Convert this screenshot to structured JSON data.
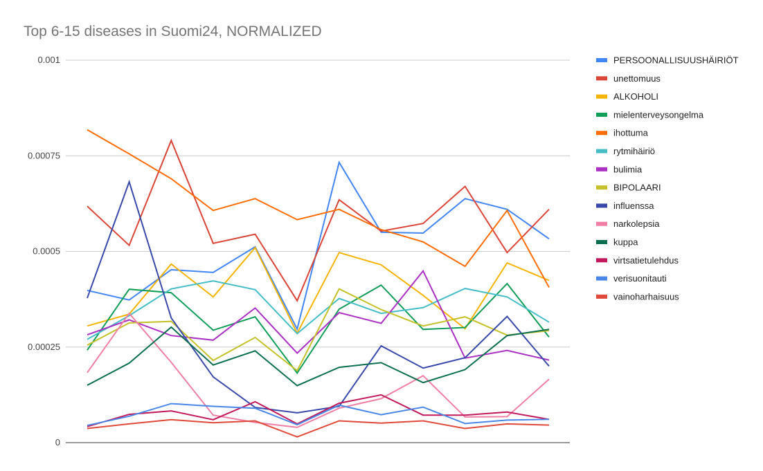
{
  "chart_data": {
    "type": "line",
    "title": "Top 6-15 diseases in Suomi24, NORMALIZED",
    "xlabel": "",
    "ylabel": "",
    "ylim": [
      0,
      0.001
    ],
    "yticks": [
      {
        "value": 0,
        "label": "0"
      },
      {
        "value": 0.00025,
        "label": "0.00025"
      },
      {
        "value": 0.0005,
        "label": "0.0005"
      },
      {
        "value": 0.00075,
        "label": "0.00075"
      },
      {
        "value": 0.001,
        "label": "0.001"
      }
    ],
    "grid": true,
    "legend_position": "right",
    "x": [
      1,
      2,
      3,
      4,
      5,
      6,
      7,
      8,
      9,
      10,
      11,
      12
    ],
    "series": [
      {
        "name": "PERSOONALLISUUSHÄIRIÖT",
        "color": "#4285f4",
        "values": [
          0.000398,
          0.000373,
          0.000452,
          0.000445,
          0.000512,
          0.000297,
          0.000733,
          0.00055,
          0.000548,
          0.000638,
          0.00061,
          0.000533
        ]
      },
      {
        "name": "unettomuus",
        "color": "#db4437",
        "values": [
          0.000618,
          0.000516,
          0.00079,
          0.000521,
          0.000545,
          0.000371,
          0.000635,
          0.000553,
          0.000573,
          0.00067,
          0.000497,
          0.00061
        ]
      },
      {
        "name": "ALKOHOLI",
        "color": "#f4b400",
        "values": [
          0.000305,
          0.000336,
          0.000467,
          0.000381,
          0.00051,
          0.000286,
          0.000497,
          0.000465,
          0.000385,
          0.000298,
          0.00047,
          0.000424
        ]
      },
      {
        "name": "mielenterveysongelma",
        "color": "#0f9d58",
        "values": [
          0.000242,
          0.000401,
          0.000392,
          0.000294,
          0.000329,
          0.000182,
          0.000349,
          0.000412,
          0.000296,
          0.000301,
          0.000416,
          0.000276
        ]
      },
      {
        "name": "ihottuma",
        "color": "#ff6d00",
        "values": [
          0.000818,
          0.000755,
          0.00069,
          0.000607,
          0.000638,
          0.000583,
          0.00061,
          0.000557,
          0.000525,
          0.000461,
          0.000607,
          0.000406
        ]
      },
      {
        "name": "rytmihäiriö",
        "color": "#46bdc6",
        "values": [
          0.00027,
          0.000332,
          0.000402,
          0.000423,
          0.0004,
          0.000285,
          0.000377,
          0.000338,
          0.000353,
          0.000403,
          0.000381,
          0.000315
        ]
      },
      {
        "name": "bulimia",
        "color": "#ab30c4",
        "values": [
          0.000282,
          0.000321,
          0.00028,
          0.000268,
          0.000352,
          0.000234,
          0.00034,
          0.000312,
          0.000449,
          0.000221,
          0.000241,
          0.000216
        ]
      },
      {
        "name": "BIPOLAARI",
        "color": "#c5c12a",
        "values": [
          0.000255,
          0.000313,
          0.000317,
          0.000215,
          0.000275,
          0.000188,
          0.000402,
          0.000348,
          0.000305,
          0.000329,
          0.000281,
          0.000293
        ]
      },
      {
        "name": "influenssa",
        "color": "#3949ab",
        "values": [
          0.000378,
          0.000682,
          0.000326,
          0.000172,
          9.2e-05,
          7.8e-05,
          9.5e-05,
          0.000253,
          0.000195,
          0.000222,
          0.00033,
          0.0002
        ]
      },
      {
        "name": "narkolepsia",
        "color": "#f07fa5",
        "values": [
          0.000183,
          0.000338,
          0.00021,
          7.2e-05,
          5.3e-05,
          4e-05,
          9e-05,
          0.000115,
          0.000175,
          6.7e-05,
          6.8e-05,
          0.000166
        ]
      },
      {
        "name": "kuppa",
        "color": "#0b6e50",
        "values": [
          0.00015,
          0.000208,
          0.000302,
          0.000203,
          0.00024,
          0.000149,
          0.000197,
          0.000209,
          0.000157,
          0.000191,
          0.00028,
          0.000296
        ]
      },
      {
        "name": "virtsatietulehdus",
        "color": "#c2185b",
        "values": [
          4.2e-05,
          7.4e-05,
          8.3e-05,
          6e-05,
          0.000107,
          4.9e-05,
          0.000103,
          0.000125,
          7.2e-05,
          7.2e-05,
          8e-05,
          6.1e-05
        ]
      },
      {
        "name": "verisuonitauti",
        "color": "#4a86e8",
        "values": [
          4.5e-05,
          6.9e-05,
          0.000102,
          9.5e-05,
          9e-05,
          4.7e-05,
          9.8e-05,
          7.3e-05,
          9.3e-05,
          5e-05,
          5.9e-05,
          6.1e-05
        ]
      },
      {
        "name": "vainoharhaisuus",
        "color": "#e0493a",
        "values": [
          3.7e-05,
          4.9e-05,
          6e-05,
          5.2e-05,
          5.7e-05,
          1.5e-05,
          5.7e-05,
          5.1e-05,
          5.7e-05,
          3.7e-05,
          4.9e-05,
          4.6e-05
        ]
      }
    ]
  }
}
